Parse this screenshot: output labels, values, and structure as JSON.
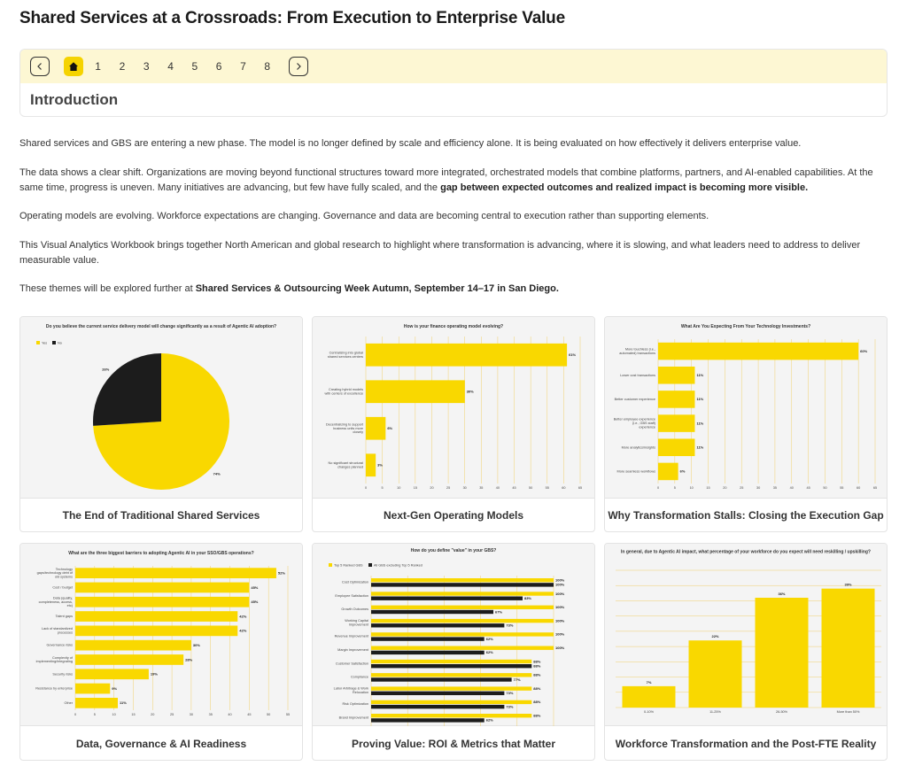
{
  "page_title": "Shared Services at a Crossroads: From Execution to Enterprise Value",
  "nav": {
    "prev_icon": "chevron-left-icon",
    "home_icon": "home-icon",
    "next_icon": "chevron-right-icon",
    "pages": [
      "1",
      "2",
      "3",
      "4",
      "5",
      "6",
      "7",
      "8"
    ],
    "section_heading": "Introduction",
    "accent_color": "#f5d300",
    "bar_bg": "#fdf7d3"
  },
  "intro": {
    "p1": "Shared services and GBS are entering a new phase. The model is no longer defined by scale and efficiency alone. It is being evaluated on how effectively it delivers enterprise value.",
    "p2_a": "The data shows a clear shift. Organizations are moving beyond functional structures toward more integrated, orchestrated models that combine platforms, partners, and AI-enabled capabilities. At the same time, progress is uneven. Many initiatives are advancing, but few have fully scaled, and the ",
    "p2_b": "gap between expected outcomes and realized impact is becoming more visible.",
    "p3": "Operating models are evolving. Workforce expectations are changing. Governance and data are becoming central to execution rather than supporting elements.",
    "p4": "This Visual Analytics Workbook brings together North American and global research to highlight where transformation is advancing, where it is slowing, and what leaders need to address to deliver measurable value.",
    "p5_a": "These themes will be explored further at ",
    "p5_b": "Shared Services & Outsourcing Week Autumn, September 14–17 in San Diego."
  },
  "cards": [
    {
      "caption": "The End of Traditional Shared Services"
    },
    {
      "caption": "Next-Gen Operating Models"
    },
    {
      "caption": "Why Transformation Stalls: Closing the Execution Gap"
    },
    {
      "caption": "Data, Governance & AI Readiness"
    },
    {
      "caption": "Proving Value: ROI & Metrics that Matter"
    },
    {
      "caption": "Workforce Transformation and the Post-FTE Reality"
    }
  ],
  "colors": {
    "yellow": "#f9d800",
    "black": "#1c1c1c",
    "grid": "#f0c84a"
  },
  "chart_data": [
    {
      "type": "pie",
      "title": "Do you believe the current service delivery model will change significantly as a result of Agentic AI adoption?",
      "categories": [
        "Yes",
        "No"
      ],
      "values": [
        74,
        26
      ],
      "labels": [
        "74%",
        "26%"
      ]
    },
    {
      "type": "bar",
      "orientation": "horizontal",
      "title": "How is your finance operating model evolving?",
      "categories": [
        "Centralizing into global shared services centers",
        "Creating hybrid models with centers of excellence",
        "Decentralizing to support business units more closely",
        "No significant structural changes planned"
      ],
      "values": [
        61,
        30,
        6,
        3
      ],
      "labels": [
        "61%",
        "30%",
        "6%",
        "3%"
      ],
      "ticks": [
        "0",
        "5",
        "10",
        "15",
        "20",
        "25",
        "30",
        "35",
        "40",
        "45",
        "50",
        "55",
        "60",
        "65"
      ],
      "xlim": [
        0,
        65
      ]
    },
    {
      "type": "bar",
      "orientation": "horizontal",
      "title": "What Are You Expecting From Your Technology Investments?",
      "categories": [
        "More touchless (i.e., automated) transactions",
        "Lower cost transactions",
        "Better customer experience",
        "Better employee experience (i.e., GBS staff) experience",
        "More analytics/insights",
        "More seamless workflows"
      ],
      "values": [
        60,
        11,
        11,
        11,
        11,
        6
      ],
      "labels": [
        "60%",
        "11%",
        "11%",
        "11%",
        "11%",
        "6%"
      ],
      "ticks": [
        "0",
        "5",
        "10",
        "15",
        "20",
        "25",
        "30",
        "35",
        "40",
        "45",
        "50",
        "55",
        "60",
        "65"
      ],
      "xlim": [
        0,
        65
      ]
    },
    {
      "type": "bar",
      "orientation": "horizontal",
      "title": "What are the three biggest barriers to adopting Agentic AI in your SSO/GBS operations?",
      "categories": [
        "Technology gaps/technology debt of old systems",
        "Cost / budget",
        "Data (quality, completeness, access, etc)",
        "Talent gaps",
        "Lack of standardized processes",
        "Governance risks",
        "Complexity of implementing/integrating",
        "Security risks",
        "Resistance by enterprise",
        "Other"
      ],
      "values": [
        52,
        45,
        45,
        42,
        42,
        30,
        28,
        19,
        9,
        11
      ],
      "labels": [
        "52%",
        "45%",
        "45%",
        "42%",
        "42%",
        "30%",
        "28%",
        "19%",
        "9%",
        "11%"
      ],
      "ticks": [
        "0",
        "5",
        "10",
        "15",
        "20",
        "25",
        "30",
        "35",
        "40",
        "45",
        "50",
        "55"
      ],
      "xlim": [
        0,
        55
      ]
    },
    {
      "type": "bar",
      "orientation": "horizontal",
      "title": "How do you define \"value\" in your GBS?",
      "categories": [
        "Cost Optimization",
        "Employee Satisfaction",
        "Growth Outcomes",
        "Working Capital Improvement",
        "Revenue Improvement",
        "Margin Improvement",
        "Customer Satisfaction",
        "Compliance",
        "Labor Arbitrage & Work Relocation",
        "Risk Optimization",
        "Brand Improvement"
      ],
      "series": [
        {
          "name": "Top 5 Ranked GBS",
          "values": [
            100,
            100,
            100,
            100,
            100,
            100,
            88,
            88,
            88,
            88,
            88
          ],
          "labels": [
            "100%",
            "100%",
            "100%",
            "100%",
            "100%",
            "100%",
            "88%",
            "88%",
            "88%",
            "88%",
            "88%"
          ]
        },
        {
          "name": "All GBS excluding Top 5 Ranked",
          "values": [
            100,
            83,
            67,
            73,
            62,
            62,
            88,
            77,
            73,
            73,
            62
          ],
          "labels": [
            "100%",
            "83%",
            "67%",
            "73%",
            "62%",
            "62%",
            "88%",
            "77%",
            "73%",
            "73%",
            "62%"
          ]
        }
      ],
      "xlim": [
        0,
        100
      ]
    },
    {
      "type": "bar",
      "orientation": "vertical",
      "title": "In general, due to Agentic AI impact, what percentage of your workforce do you expect will need reskilling / upskilling?",
      "categories": [
        "0-10%",
        "11-25%",
        "26-50%",
        "More than 50%"
      ],
      "values": [
        7,
        22,
        36,
        39
      ],
      "labels": [
        "7%",
        "22%",
        "36%",
        "39%"
      ],
      "ylim": [
        0,
        45
      ]
    }
  ]
}
